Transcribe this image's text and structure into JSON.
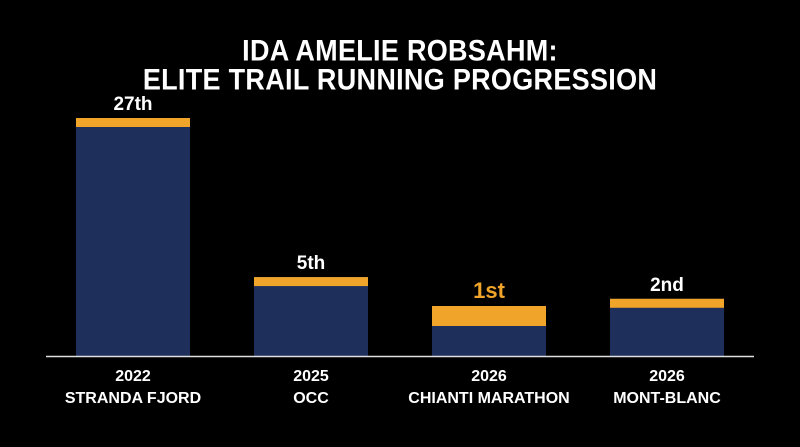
{
  "title_lines": [
    "IDA AMELIE ROBSAHM:",
    "ELITE TRAIL RUNNING PROGRESSION"
  ],
  "colors": {
    "bar": "#1f2f5c",
    "accent": "#f0a52a",
    "text": "#ffffff",
    "background": "#000000",
    "axis": "#e0e0e0"
  },
  "chart_data": {
    "type": "bar",
    "categories": [
      {
        "year": "2022",
        "race": "STRANDA FJORD"
      },
      {
        "year": "2025",
        "race": "OCC"
      },
      {
        "year": "2026",
        "race": "CHIANTI MARATHON"
      },
      {
        "year": "2026",
        "race": "MONT-BLANC"
      }
    ],
    "series": [
      {
        "values": [
          27,
          5,
          1,
          2
        ]
      }
    ],
    "data_labels": [
      "27th",
      "5th",
      "1st",
      "2nd"
    ],
    "highlight_index": 2,
    "grid": false,
    "legend": "none"
  }
}
